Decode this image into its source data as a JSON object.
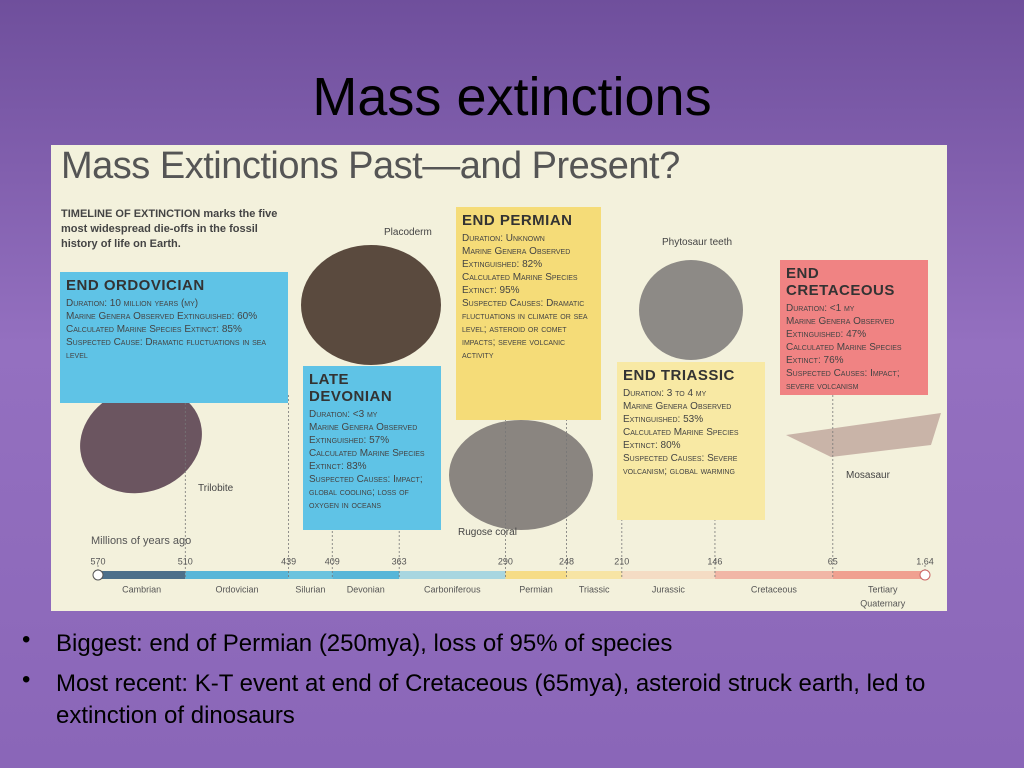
{
  "slide": {
    "title": "Mass extinctions",
    "bullets": [
      "Biggest:  end of Permian (250mya), loss of 95% of species",
      "Most recent:  K-T event at end of Cretaceous (65mya), asteroid struck earth, led to extinction of dinosaurs"
    ]
  },
  "infographic": {
    "title": "Mass Extinctions Past—and Present?",
    "intro": "TIMELINE OF EXTINCTION marks the five most widespread die-offs in the fossil history of life on Earth.",
    "events": [
      {
        "heading": "END ORDOVICIAN",
        "details": [
          "Duration: 10 million years (my)",
          "Marine Genera Observed Extinguished: 60%",
          "Calculated Marine Species Extinct: 85%",
          "Suspected Cause: Dramatic fluctuations in sea level"
        ]
      },
      {
        "heading": "LATE DEVONIAN",
        "details": [
          "Duration: <3 my",
          "Marine Genera Observed Extinguished: 57%",
          "Calculated Marine Species Extinct: 83%",
          "Suspected Causes: Impact; global cooling; loss of oxygen in oceans"
        ]
      },
      {
        "heading": "END PERMIAN",
        "details": [
          "Duration: Unknown",
          "Marine Genera Observed Extinguished: 82%",
          "Calculated Marine Species Extinct: 95%",
          "Suspected Causes: Dramatic fluctuations in climate or sea level; asteroid or comet impacts; severe volcanic activity"
        ]
      },
      {
        "heading": "END TRIASSIC",
        "details": [
          "Duration: 3 to 4 my",
          "Marine Genera Observed Extinguished: 53%",
          "Calculated Marine Species Extinct: 80%",
          "Suspected Causes: Severe volcanism; global warming"
        ]
      },
      {
        "heading": "END CRETACEOUS",
        "details": [
          "Duration: <1 my",
          "Marine Genera Observed Extinguished: 47%",
          "Calculated Marine Species Extinct: 76%",
          "Suspected Causes: Impact; severe volcanism"
        ]
      }
    ],
    "fossil_labels": [
      "Trilobite",
      "Placoderm",
      "Rugose coral",
      "Phytosaur teeth",
      "Mosasaur"
    ],
    "axis_title": "Millions of years ago",
    "ticks": [
      570,
      510,
      439,
      409,
      363,
      290,
      248,
      210,
      146,
      65,
      1.64
    ],
    "periods": [
      "Cambrian",
      "Ordovician",
      "Silurian",
      "Devonian",
      "Carboniferous",
      "Permian",
      "Triassic",
      "Jurassic",
      "Cretaceous",
      "Tertiary",
      "Quaternary"
    ]
  }
}
